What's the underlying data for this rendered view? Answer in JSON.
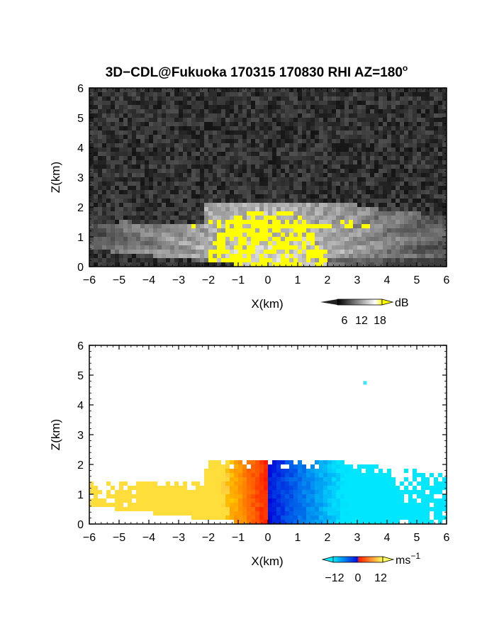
{
  "chart_data": [
    {
      "type": "heatmap",
      "title": "3D−CDL@Fukuoka 170315 170830 RHI AZ=180",
      "title_superscript": "o",
      "xlabel": "X(km)",
      "ylabel": "Z(km)",
      "xlim": [
        -6,
        6
      ],
      "ylim": [
        0,
        6
      ],
      "x_ticks": [
        "−6",
        "−5",
        "−4",
        "−3",
        "−2",
        "−1",
        "0",
        "1",
        "2",
        "3",
        "4",
        "5",
        "6"
      ],
      "y_ticks": [
        "0",
        "1",
        "2",
        "3",
        "4",
        "5",
        "6"
      ],
      "colorbar": {
        "unit": "dB",
        "ticks": [
          "6",
          "12",
          "18"
        ],
        "range": [
          0,
          20
        ],
        "colors": [
          "#000000",
          "#ffffff",
          "#ffff00"
        ]
      },
      "background": "noise",
      "echo_top_km": 2.1,
      "saturated_color": "#ffff00"
    },
    {
      "type": "heatmap",
      "xlabel": "X(km)",
      "ylabel": "Z(km)",
      "xlim": [
        -6,
        6
      ],
      "ylim": [
        0,
        6
      ],
      "x_ticks": [
        "−6",
        "−5",
        "−4",
        "−3",
        "−2",
        "−1",
        "0",
        "1",
        "2",
        "3",
        "4",
        "5",
        "6"
      ],
      "y_ticks": [
        "0",
        "1",
        "2",
        "3",
        "4",
        "5",
        "6"
      ],
      "colorbar": {
        "unit": "ms",
        "unit_superscript": "−1",
        "ticks": [
          "−12",
          "0",
          "12"
        ],
        "range": [
          -18,
          18
        ],
        "colors": [
          "#00e0ff",
          "#0000e0",
          "#ff2000",
          "#ffff40"
        ]
      },
      "background": "white",
      "velocity_sign": "negative right of 0, positive left of 0"
    }
  ]
}
